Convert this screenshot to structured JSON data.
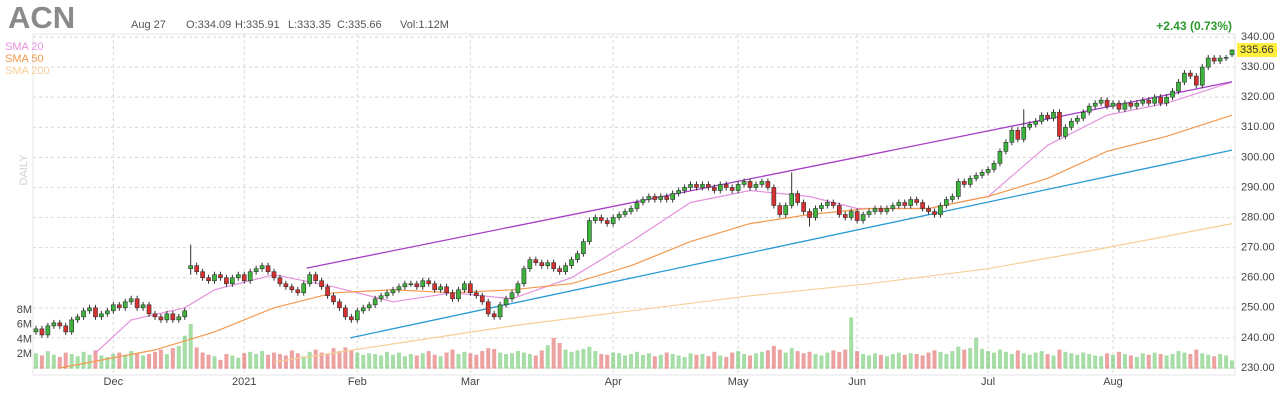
{
  "header": {
    "symbol": "ACN",
    "date": "Aug 27",
    "open": "O:334.09",
    "high": "H:335.91",
    "low": "L:333.35",
    "close": "C:335.66",
    "volume": "Vol:1.12M",
    "change": "+2.43 (0.73%)"
  },
  "chart_data": {
    "type": "candlestick",
    "timeframe": "DAILY",
    "up_color": "#3cb43c",
    "down_color": "#d63030",
    "change_color": "#2b9a2b",
    "grid": true,
    "xlim": [
      -0.5,
      201.5
    ],
    "xticks": [
      {
        "value": 13,
        "label": "Dec"
      },
      {
        "value": 35,
        "label": "2021"
      },
      {
        "value": 54,
        "label": "Feb"
      },
      {
        "value": 73,
        "label": "Mar"
      },
      {
        "value": 97,
        "label": "Apr"
      },
      {
        "value": 118,
        "label": "May"
      },
      {
        "value": 138,
        "label": "Jun"
      },
      {
        "value": 160,
        "label": "Jul"
      },
      {
        "value": 181,
        "label": "Aug"
      }
    ],
    "ylim": [
      230,
      340
    ],
    "yticks": [
      {
        "value": 230,
        "label": "230.00"
      },
      {
        "value": 240,
        "label": "240.00"
      },
      {
        "value": 250,
        "label": "250.00"
      },
      {
        "value": 260,
        "label": "260.00"
      },
      {
        "value": 270,
        "label": "270.00"
      },
      {
        "value": 280,
        "label": "280.00"
      },
      {
        "value": 290,
        "label": "290.00"
      },
      {
        "value": 300,
        "label": "300.00"
      },
      {
        "value": 310,
        "label": "310.00"
      },
      {
        "value": 320,
        "label": "320.00"
      },
      {
        "value": 330,
        "label": "330.00"
      },
      {
        "value": 340,
        "label": "340.00"
      }
    ],
    "vol_lim": [
      0,
      8
    ],
    "vol_ticks": [
      {
        "value": 2,
        "label": "2M"
      },
      {
        "value": 4,
        "label": "4M"
      },
      {
        "value": 6,
        "label": "6M"
      },
      {
        "value": 8,
        "label": "8M"
      }
    ],
    "open": [
      242,
      243,
      241,
      244,
      245,
      244,
      242,
      246,
      247,
      249,
      250,
      247,
      248,
      249,
      251,
      250,
      252,
      253,
      250,
      251,
      248,
      247,
      246,
      248,
      246,
      247,
      263,
      264,
      262,
      260,
      259,
      261,
      260,
      258,
      260,
      261,
      259,
      262,
      263,
      264,
      262,
      260,
      258,
      257,
      256,
      255,
      258,
      261,
      259,
      257,
      254,
      252,
      250,
      247,
      246,
      249,
      250,
      251,
      253,
      254,
      255,
      256,
      257,
      258,
      258,
      257,
      259,
      258,
      256,
      257,
      255,
      253,
      256,
      258,
      255,
      254,
      252,
      248,
      247,
      251,
      253,
      255,
      258,
      263,
      266,
      265,
      264,
      265,
      263,
      262,
      264,
      266,
      268,
      272,
      279,
      280,
      279,
      278,
      280,
      281,
      282,
      283,
      285,
      286,
      287,
      286,
      287,
      286,
      288,
      289,
      290,
      291,
      290,
      291,
      290,
      289,
      291,
      290,
      289,
      291,
      292,
      290,
      291,
      292,
      290,
      284,
      281,
      284,
      288,
      285,
      282,
      280,
      283,
      284,
      285,
      284,
      281,
      280,
      282,
      279,
      281,
      282,
      283,
      282,
      283,
      284,
      285,
      284,
      286,
      285,
      283,
      282,
      281,
      284,
      286,
      287,
      292,
      291,
      293,
      294,
      295,
      296,
      298,
      302,
      305,
      309,
      306,
      310,
      311,
      312,
      314,
      313,
      315,
      307,
      310,
      312,
      313,
      315,
      317,
      318,
      319,
      317,
      318,
      316,
      318,
      317,
      318,
      319,
      318,
      320,
      318,
      320,
      322,
      325,
      328,
      327,
      324,
      330,
      333,
      332,
      333,
      334.09
    ],
    "high": [
      244,
      244,
      245,
      246,
      246,
      245,
      247,
      248,
      250,
      251,
      251,
      249,
      250,
      252,
      252,
      253,
      254,
      254,
      252,
      252,
      249,
      248,
      249,
      249,
      248,
      250,
      271,
      265,
      263,
      261,
      262,
      262,
      261,
      261,
      262,
      262,
      263,
      264,
      265,
      265,
      263,
      261,
      259,
      258,
      257,
      259,
      262,
      262,
      260,
      258,
      255,
      253,
      251,
      248,
      250,
      251,
      252,
      254,
      255,
      256,
      257,
      258,
      259,
      259,
      259,
      260,
      260,
      259,
      258,
      258,
      256,
      257,
      259,
      259,
      256,
      255,
      253,
      249,
      252,
      254,
      256,
      259,
      264,
      267,
      267,
      266,
      266,
      266,
      264,
      265,
      267,
      269,
      273,
      280,
      281,
      281,
      280,
      281,
      282,
      283,
      284,
      286,
      287,
      288,
      288,
      288,
      288,
      289,
      290,
      291,
      292,
      292,
      292,
      292,
      291,
      292,
      292,
      291,
      292,
      293,
      293,
      292,
      293,
      293,
      291,
      285,
      285,
      295,
      289,
      286,
      283,
      284,
      285,
      286,
      286,
      285,
      282,
      283,
      283,
      282,
      283,
      284,
      284,
      284,
      285,
      286,
      286,
      287,
      287,
      286,
      284,
      283,
      285,
      287,
      288,
      293,
      293,
      294,
      295,
      296,
      297,
      299,
      303,
      306,
      310,
      310,
      316,
      312,
      313,
      315,
      315,
      316,
      316,
      311,
      313,
      314,
      316,
      318,
      319,
      320,
      320,
      319,
      319,
      319,
      319,
      319,
      320,
      320,
      321,
      321,
      321,
      323,
      326,
      329,
      329,
      328,
      331,
      334,
      334,
      334,
      334,
      335.91
    ],
    "low": [
      241,
      240,
      240,
      243,
      243,
      241,
      241,
      245,
      246,
      248,
      246,
      246,
      247,
      248,
      249,
      249,
      251,
      249,
      249,
      247,
      246,
      245,
      245,
      245,
      245,
      246,
      261,
      261,
      259,
      258,
      258,
      259,
      257,
      257,
      259,
      258,
      258,
      261,
      262,
      261,
      259,
      257,
      256,
      255,
      254,
      254,
      257,
      258,
      256,
      253,
      251,
      249,
      246,
      245,
      245,
      248,
      249,
      250,
      252,
      253,
      254,
      255,
      256,
      257,
      256,
      256,
      257,
      255,
      255,
      254,
      252,
      252,
      255,
      254,
      253,
      251,
      247,
      246,
      246,
      250,
      252,
      254,
      257,
      262,
      264,
      263,
      263,
      262,
      261,
      261,
      263,
      265,
      267,
      271,
      278,
      278,
      277,
      277,
      279,
      280,
      281,
      282,
      284,
      285,
      285,
      285,
      285,
      285,
      287,
      288,
      289,
      289,
      289,
      289,
      288,
      288,
      289,
      288,
      288,
      290,
      289,
      289,
      290,
      289,
      283,
      280,
      280,
      283,
      284,
      281,
      277,
      279,
      282,
      283,
      283,
      280,
      279,
      279,
      278,
      278,
      280,
      281,
      281,
      281,
      282,
      283,
      283,
      283,
      284,
      282,
      281,
      280,
      280,
      283,
      285,
      286,
      290,
      290,
      292,
      293,
      294,
      295,
      297,
      301,
      304,
      305,
      305,
      309,
      310,
      311,
      312,
      312,
      306,
      306,
      309,
      311,
      312,
      314,
      316,
      317,
      316,
      316,
      315,
      315,
      316,
      316,
      317,
      317,
      317,
      317,
      317,
      319,
      321,
      324,
      326,
      323,
      323,
      329,
      331,
      331,
      332,
      333.35
    ],
    "close": [
      243,
      241,
      244,
      245,
      244,
      242,
      246,
      247,
      249,
      250,
      247,
      248,
      249,
      251,
      250,
      252,
      253,
      250,
      251,
      248,
      247,
      246,
      248,
      246,
      247,
      249,
      264,
      262,
      260,
      259,
      261,
      260,
      258,
      260,
      261,
      259,
      262,
      263,
      264,
      262,
      260,
      258,
      257,
      256,
      255,
      258,
      261,
      259,
      257,
      254,
      252,
      250,
      247,
      246,
      249,
      250,
      251,
      253,
      254,
      255,
      256,
      257,
      258,
      258,
      257,
      259,
      258,
      256,
      257,
      255,
      253,
      256,
      258,
      255,
      254,
      252,
      248,
      247,
      251,
      253,
      255,
      258,
      263,
      266,
      265,
      264,
      265,
      263,
      262,
      264,
      266,
      268,
      272,
      279,
      280,
      279,
      278,
      280,
      281,
      282,
      283,
      285,
      286,
      287,
      286,
      287,
      286,
      288,
      289,
      290,
      291,
      290,
      291,
      290,
      289,
      291,
      290,
      289,
      291,
      292,
      290,
      291,
      292,
      290,
      284,
      281,
      284,
      288,
      285,
      282,
      280,
      283,
      284,
      285,
      284,
      281,
      280,
      282,
      279,
      281,
      282,
      283,
      282,
      283,
      284,
      285,
      284,
      286,
      285,
      283,
      282,
      281,
      284,
      286,
      287,
      292,
      291,
      293,
      294,
      295,
      296,
      298,
      302,
      305,
      309,
      306,
      310,
      311,
      312,
      314,
      313,
      315,
      307,
      310,
      312,
      313,
      315,
      317,
      318,
      319,
      317,
      318,
      316,
      318,
      317,
      318,
      319,
      318,
      320,
      318,
      320,
      322,
      325,
      328,
      327,
      324,
      330,
      333,
      332,
      333,
      333.23,
      335.66
    ],
    "volume": [
      2.1,
      1.8,
      2.4,
      1.9,
      1.6,
      2.2,
      2.0,
      1.7,
      2.3,
      1.9,
      2.5,
      1.8,
      1.6,
      2.0,
      2.2,
      1.9,
      2.4,
      2.1,
      1.8,
      2.0,
      2.3,
      2.6,
      2.0,
      2.8,
      3.1,
      4.5,
      6.1,
      2.9,
      2.2,
      1.9,
      1.7,
      1.2,
      2.0,
      1.8,
      1.5,
      2.1,
      2.3,
      2.0,
      2.4,
      1.9,
      2.2,
      2.0,
      1.8,
      2.5,
      2.1,
      1.7,
      2.3,
      2.6,
      2.2,
      2.0,
      2.8,
      2.4,
      2.9,
      2.5,
      2.2,
      1.9,
      2.1,
      2.0,
      1.8,
      2.3,
      1.9,
      2.2,
      1.7,
      2.0,
      1.8,
      2.1,
      2.4,
      1.9,
      1.7,
      2.2,
      2.6,
      2.0,
      2.3,
      2.1,
      1.9,
      2.4,
      2.8,
      2.7,
      2.2,
      2.0,
      2.1,
      2.4,
      2.2,
      2.0,
      1.8,
      2.5,
      3.2,
      4.2,
      3.5,
      2.6,
      2.3,
      2.5,
      2.7,
      3.0,
      2.4,
      2.0,
      1.9,
      2.2,
      2.1,
      1.8,
      2.0,
      2.3,
      1.9,
      2.1,
      1.7,
      1.9,
      2.2,
      2.0,
      1.8,
      1.6,
      2.1,
      1.9,
      2.0,
      1.7,
      2.3,
      1.8,
      1.6,
      2.2,
      2.4,
      2.0,
      1.8,
      2.1,
      2.3,
      2.5,
      3.1,
      2.6,
      2.2,
      2.8,
      2.4,
      2.1,
      2.3,
      2.0,
      1.8,
      2.2,
      2.5,
      2.3,
      2.6,
      7.0,
      2.4,
      2.0,
      1.8,
      2.1,
      1.9,
      1.7,
      2.0,
      2.2,
      1.9,
      2.1,
      2.0,
      1.8,
      2.2,
      2.5,
      2.3,
      2.0,
      2.4,
      3.0,
      2.6,
      2.8,
      4.2,
      2.7,
      2.4,
      2.2,
      2.6,
      2.3,
      2.0,
      2.5,
      2.1,
      1.9,
      2.2,
      2.4,
      2.0,
      1.8,
      2.6,
      2.3,
      2.1,
      1.9,
      2.2,
      2.0,
      1.8,
      1.7,
      2.1,
      1.9,
      2.3,
      2.0,
      1.8,
      1.6,
      2.1,
      1.9,
      2.2,
      2.0,
      1.8,
      2.0,
      2.4,
      2.2,
      2.0,
      2.6,
      2.1,
      1.9,
      1.7,
      2.0,
      1.8,
      1.12
    ],
    "overlays": [
      {
        "name": "SMA 20",
        "color": "#e592dc",
        "x": [
          10,
          16,
          25,
          30,
          40,
          50,
          60,
          70,
          80,
          90,
          100,
          110,
          120,
          130,
          138,
          150,
          160,
          170,
          180,
          190,
          201
        ],
        "values": [
          235,
          246,
          250,
          256,
          261,
          257,
          252,
          255,
          253,
          260,
          272,
          285,
          289,
          287,
          283,
          283,
          287,
          304,
          314,
          318,
          325
        ]
      },
      {
        "name": "SMA 50",
        "color": "#f39a4e",
        "x": [
          4,
          20,
          30,
          40,
          50,
          60,
          70,
          80,
          90,
          100,
          110,
          120,
          130,
          140,
          150,
          160,
          170,
          180,
          190,
          201
        ],
        "values": [
          230,
          236,
          242,
          250,
          255,
          256,
          255,
          256,
          258,
          264,
          272,
          278,
          281,
          283,
          283,
          287,
          293,
          302,
          307,
          314
        ]
      },
      {
        "name": "SMA 200",
        "color": "#f7cf98",
        "x": [
          40,
          60,
          80,
          100,
          120,
          140,
          160,
          180,
          201
        ],
        "values": [
          232,
          238,
          244,
          249,
          254,
          258,
          263,
          270,
          278
        ]
      }
    ],
    "trendlines": [
      {
        "color": "#a63ec6",
        "x": [
          45.5,
          201
        ],
        "values": [
          263.2,
          325.1
        ]
      },
      {
        "color": "#2a9ad6",
        "x": [
          52.8,
          201
        ],
        "values": [
          240,
          302.4
        ]
      }
    ]
  }
}
